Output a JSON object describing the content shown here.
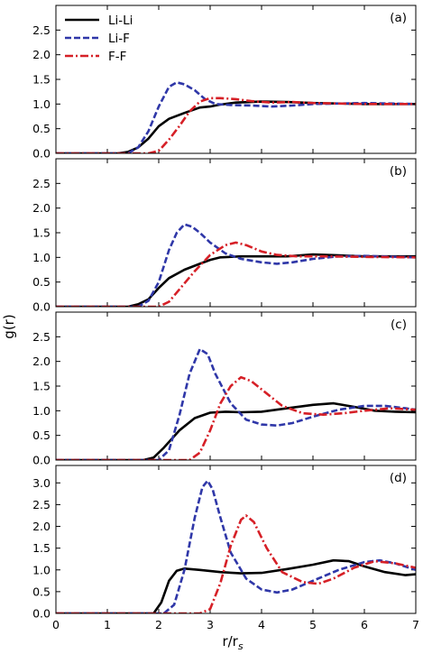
{
  "figure": {
    "xlabel": "r/r",
    "xlabel_sub": "s",
    "ylabel": "g(r)"
  },
  "legend": [
    {
      "name": "Li-Li",
      "color": "#000000",
      "dash": "solid"
    },
    {
      "name": "Li-F",
      "color": "#2f37a8",
      "dash": "dashed"
    },
    {
      "name": "F-F",
      "color": "#d62027",
      "dash": "dashdot"
    }
  ],
  "chart_data": [
    {
      "type": "line",
      "panel": "(a)",
      "xlim": [
        0,
        7
      ],
      "ylim": [
        0,
        3.0
      ],
      "xticks": [
        0,
        1,
        2,
        3,
        4,
        5,
        6,
        7
      ],
      "yticks": [
        0.0,
        0.5,
        1.0,
        1.5,
        2.0,
        2.5
      ],
      "xlabel": "",
      "ylabel": "g(r)",
      "legend_position": "top-left",
      "grid": false,
      "series": [
        {
          "name": "Li-Li",
          "color": "#000000",
          "dash": "solid",
          "points": [
            [
              0,
              0
            ],
            [
              1.2,
              0
            ],
            [
              1.4,
              0.03
            ],
            [
              1.6,
              0.12
            ],
            [
              1.8,
              0.3
            ],
            [
              2.0,
              0.55
            ],
            [
              2.2,
              0.7
            ],
            [
              2.5,
              0.82
            ],
            [
              2.8,
              0.93
            ],
            [
              3.0,
              0.95
            ],
            [
              3.2,
              0.99
            ],
            [
              3.5,
              1.03
            ],
            [
              4.0,
              1.05
            ],
            [
              4.5,
              1.04
            ],
            [
              5.0,
              1.02
            ],
            [
              6.0,
              1.0
            ],
            [
              7.0,
              1.0
            ]
          ]
        },
        {
          "name": "Li-F",
          "color": "#2f37a8",
          "dash": "dashed",
          "points": [
            [
              0,
              0
            ],
            [
              1.4,
              0
            ],
            [
              1.6,
              0.12
            ],
            [
              1.8,
              0.45
            ],
            [
              2.0,
              0.95
            ],
            [
              2.2,
              1.35
            ],
            [
              2.35,
              1.44
            ],
            [
              2.5,
              1.4
            ],
            [
              2.7,
              1.28
            ],
            [
              2.9,
              1.1
            ],
            [
              3.1,
              1.0
            ],
            [
              3.4,
              0.98
            ],
            [
              3.8,
              0.97
            ],
            [
              4.2,
              0.95
            ],
            [
              4.6,
              0.97
            ],
            [
              5.0,
              1.0
            ],
            [
              6.0,
              1.02
            ],
            [
              7.0,
              1.0
            ]
          ]
        },
        {
          "name": "F-F",
          "color": "#d62027",
          "dash": "dashdot",
          "points": [
            [
              0,
              0
            ],
            [
              1.8,
              0
            ],
            [
              2.0,
              0.05
            ],
            [
              2.2,
              0.28
            ],
            [
              2.4,
              0.55
            ],
            [
              2.6,
              0.85
            ],
            [
              2.8,
              1.05
            ],
            [
              3.0,
              1.12
            ],
            [
              3.2,
              1.12
            ],
            [
              3.5,
              1.1
            ],
            [
              3.8,
              1.06
            ],
            [
              4.2,
              1.03
            ],
            [
              4.6,
              1.04
            ],
            [
              5.0,
              1.02
            ],
            [
              6.0,
              1.0
            ],
            [
              7.0,
              1.0
            ]
          ]
        }
      ]
    },
    {
      "type": "line",
      "panel": "(b)",
      "xlim": [
        0,
        7
      ],
      "ylim": [
        0,
        3.0
      ],
      "xticks": [
        0,
        1,
        2,
        3,
        4,
        5,
        6,
        7
      ],
      "yticks": [
        0.0,
        0.5,
        1.0,
        1.5,
        2.0,
        2.5
      ],
      "xlabel": "",
      "ylabel": "g(r)",
      "grid": false,
      "series": [
        {
          "name": "Li-Li",
          "color": "#000000",
          "dash": "solid",
          "points": [
            [
              0,
              0
            ],
            [
              1.4,
              0
            ],
            [
              1.6,
              0.05
            ],
            [
              1.8,
              0.15
            ],
            [
              2.0,
              0.38
            ],
            [
              2.2,
              0.58
            ],
            [
              2.5,
              0.75
            ],
            [
              2.8,
              0.87
            ],
            [
              3.0,
              0.95
            ],
            [
              3.2,
              1.0
            ],
            [
              3.6,
              1.02
            ],
            [
              4.0,
              1.02
            ],
            [
              4.5,
              1.02
            ],
            [
              5.0,
              1.06
            ],
            [
              5.5,
              1.04
            ],
            [
              6.0,
              1.02
            ],
            [
              7.0,
              1.02
            ]
          ]
        },
        {
          "name": "Li-F",
          "color": "#2f37a8",
          "dash": "dashed",
          "points": [
            [
              0,
              0
            ],
            [
              1.6,
              0
            ],
            [
              1.8,
              0.12
            ],
            [
              2.0,
              0.5
            ],
            [
              2.2,
              1.15
            ],
            [
              2.35,
              1.5
            ],
            [
              2.5,
              1.67
            ],
            [
              2.65,
              1.62
            ],
            [
              2.8,
              1.5
            ],
            [
              3.0,
              1.3
            ],
            [
              3.3,
              1.08
            ],
            [
              3.6,
              0.97
            ],
            [
              4.0,
              0.9
            ],
            [
              4.3,
              0.87
            ],
            [
              4.6,
              0.9
            ],
            [
              5.0,
              0.97
            ],
            [
              5.5,
              1.02
            ],
            [
              6.0,
              1.03
            ],
            [
              7.0,
              1.0
            ]
          ]
        },
        {
          "name": "F-F",
          "color": "#d62027",
          "dash": "dashdot",
          "points": [
            [
              0,
              0
            ],
            [
              2.0,
              0
            ],
            [
              2.2,
              0.1
            ],
            [
              2.4,
              0.35
            ],
            [
              2.7,
              0.72
            ],
            [
              3.0,
              1.05
            ],
            [
              3.3,
              1.25
            ],
            [
              3.5,
              1.3
            ],
            [
              3.7,
              1.25
            ],
            [
              4.0,
              1.12
            ],
            [
              4.3,
              1.05
            ],
            [
              4.7,
              1.02
            ],
            [
              5.2,
              1.02
            ],
            [
              6.0,
              1.01
            ],
            [
              7.0,
              1.0
            ]
          ]
        }
      ]
    },
    {
      "type": "line",
      "panel": "(c)",
      "xlim": [
        0,
        7
      ],
      "ylim": [
        0,
        3.0
      ],
      "xticks": [
        0,
        1,
        2,
        3,
        4,
        5,
        6,
        7
      ],
      "yticks": [
        0.0,
        0.5,
        1.0,
        1.5,
        2.0,
        2.5
      ],
      "xlabel": "",
      "ylabel": "g(r)",
      "grid": false,
      "series": [
        {
          "name": "Li-Li",
          "color": "#000000",
          "dash": "solid",
          "points": [
            [
              0,
              0
            ],
            [
              1.7,
              0
            ],
            [
              1.9,
              0.05
            ],
            [
              2.1,
              0.25
            ],
            [
              2.4,
              0.6
            ],
            [
              2.7,
              0.85
            ],
            [
              3.0,
              0.96
            ],
            [
              3.3,
              0.98
            ],
            [
              3.6,
              0.97
            ],
            [
              4.0,
              0.98
            ],
            [
              4.5,
              1.05
            ],
            [
              5.0,
              1.12
            ],
            [
              5.4,
              1.15
            ],
            [
              5.8,
              1.08
            ],
            [
              6.2,
              1.0
            ],
            [
              6.6,
              0.98
            ],
            [
              7.0,
              0.97
            ]
          ]
        },
        {
          "name": "Li-F",
          "color": "#2f37a8",
          "dash": "dashed",
          "points": [
            [
              0,
              0
            ],
            [
              2.0,
              0
            ],
            [
              2.2,
              0.2
            ],
            [
              2.4,
              0.9
            ],
            [
              2.6,
              1.75
            ],
            [
              2.8,
              2.25
            ],
            [
              2.95,
              2.15
            ],
            [
              3.1,
              1.75
            ],
            [
              3.4,
              1.15
            ],
            [
              3.7,
              0.82
            ],
            [
              4.0,
              0.72
            ],
            [
              4.3,
              0.7
            ],
            [
              4.6,
              0.75
            ],
            [
              5.0,
              0.88
            ],
            [
              5.5,
              1.02
            ],
            [
              6.0,
              1.1
            ],
            [
              6.4,
              1.1
            ],
            [
              6.8,
              1.05
            ],
            [
              7.0,
              1.02
            ]
          ]
        },
        {
          "name": "F-F",
          "color": "#d62027",
          "dash": "dashdot",
          "points": [
            [
              0,
              0
            ],
            [
              2.6,
              0
            ],
            [
              2.8,
              0.15
            ],
            [
              3.0,
              0.6
            ],
            [
              3.2,
              1.15
            ],
            [
              3.4,
              1.5
            ],
            [
              3.6,
              1.68
            ],
            [
              3.8,
              1.6
            ],
            [
              4.1,
              1.35
            ],
            [
              4.4,
              1.1
            ],
            [
              4.8,
              0.95
            ],
            [
              5.2,
              0.92
            ],
            [
              5.6,
              0.95
            ],
            [
              6.0,
              1.0
            ],
            [
              6.5,
              1.05
            ],
            [
              7.0,
              1.02
            ]
          ]
        }
      ]
    },
    {
      "type": "line",
      "panel": "(d)",
      "xlim": [
        0,
        7
      ],
      "ylim": [
        0,
        3.4
      ],
      "xticks": [
        0,
        1,
        2,
        3,
        4,
        5,
        6,
        7
      ],
      "yticks": [
        0.0,
        0.5,
        1.0,
        1.5,
        2.0,
        2.5,
        3.0
      ],
      "xlabel": "r/r_s",
      "ylabel": "g(r)",
      "grid": false,
      "series": [
        {
          "name": "Li-Li",
          "color": "#000000",
          "dash": "solid",
          "points": [
            [
              0,
              0
            ],
            [
              1.9,
              0
            ],
            [
              2.05,
              0.25
            ],
            [
              2.2,
              0.75
            ],
            [
              2.35,
              0.98
            ],
            [
              2.5,
              1.03
            ],
            [
              2.8,
              1.0
            ],
            [
              3.2,
              0.95
            ],
            [
              3.6,
              0.92
            ],
            [
              4.0,
              0.93
            ],
            [
              4.5,
              1.02
            ],
            [
              5.0,
              1.12
            ],
            [
              5.4,
              1.22
            ],
            [
              5.7,
              1.2
            ],
            [
              6.0,
              1.08
            ],
            [
              6.4,
              0.95
            ],
            [
              6.8,
              0.88
            ],
            [
              7.0,
              0.9
            ]
          ]
        },
        {
          "name": "Li-F",
          "color": "#2f37a8",
          "dash": "dashed",
          "points": [
            [
              0,
              0
            ],
            [
              2.1,
              0
            ],
            [
              2.3,
              0.2
            ],
            [
              2.5,
              1.0
            ],
            [
              2.7,
              2.2
            ],
            [
              2.85,
              2.9
            ],
            [
              2.95,
              3.05
            ],
            [
              3.05,
              2.85
            ],
            [
              3.2,
              2.2
            ],
            [
              3.4,
              1.4
            ],
            [
              3.7,
              0.8
            ],
            [
              4.0,
              0.55
            ],
            [
              4.3,
              0.48
            ],
            [
              4.6,
              0.55
            ],
            [
              5.0,
              0.75
            ],
            [
              5.5,
              1.0
            ],
            [
              6.0,
              1.18
            ],
            [
              6.3,
              1.22
            ],
            [
              6.6,
              1.15
            ],
            [
              7.0,
              1.0
            ]
          ]
        },
        {
          "name": "F-F",
          "color": "#d62027",
          "dash": "dashdot",
          "points": [
            [
              0,
              0
            ],
            [
              2.8,
              0
            ],
            [
              3.0,
              0.1
            ],
            [
              3.2,
              0.7
            ],
            [
              3.4,
              1.55
            ],
            [
              3.6,
              2.15
            ],
            [
              3.7,
              2.25
            ],
            [
              3.85,
              2.1
            ],
            [
              4.1,
              1.5
            ],
            [
              4.4,
              0.95
            ],
            [
              4.8,
              0.72
            ],
            [
              5.1,
              0.68
            ],
            [
              5.4,
              0.8
            ],
            [
              5.8,
              1.05
            ],
            [
              6.2,
              1.2
            ],
            [
              6.6,
              1.15
            ],
            [
              7.0,
              1.05
            ]
          ]
        }
      ]
    }
  ]
}
